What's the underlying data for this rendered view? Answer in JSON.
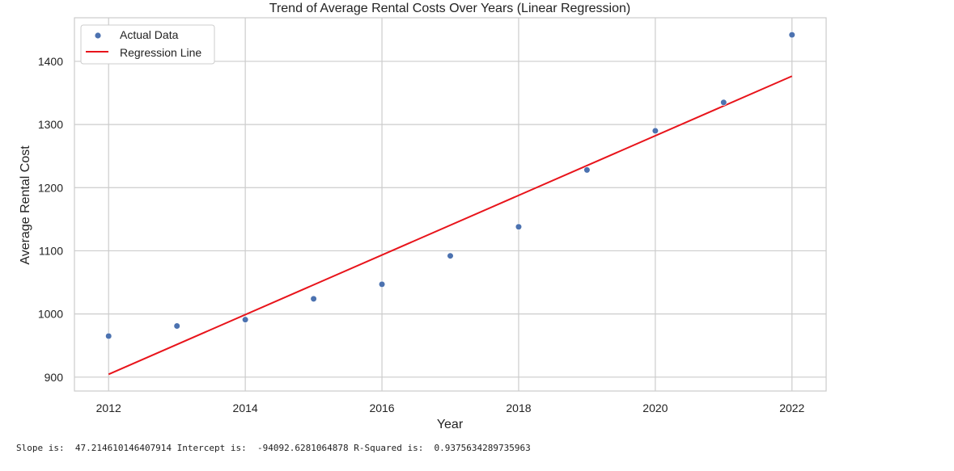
{
  "chart_data": {
    "type": "scatter",
    "title": "Trend of Average Rental Costs Over Years (Linear Regression)",
    "xlabel": "Year",
    "ylabel": "Average Rental Cost",
    "xlim": [
      2011.5,
      2022.5
    ],
    "ylim": [
      878,
      1469
    ],
    "x_ticks": [
      "2012",
      "2014",
      "2016",
      "2018",
      "2020",
      "2022"
    ],
    "y_ticks": [
      "900",
      "1000",
      "1100",
      "1200",
      "1300",
      "1400"
    ],
    "grid": true,
    "legend_position": "top-left",
    "series": [
      {
        "name": "Actual Data",
        "kind": "scatter",
        "color": "#4c72b0",
        "x": [
          2012,
          2013,
          2014,
          2015,
          2016,
          2017,
          2018,
          2019,
          2020,
          2021,
          2022
        ],
        "y": [
          965,
          981,
          991,
          1024,
          1047,
          1092,
          1138,
          1228,
          1290,
          1335,
          1442
        ]
      },
      {
        "name": "Regression Line",
        "kind": "line",
        "color": "#e8141b",
        "x": [
          2012,
          2022
        ],
        "y": [
          904.5,
          1376.6
        ]
      }
    ]
  },
  "stats_text": "Slope is:  47.214610146407914 Intercept is:  -94092.6281064878 R-Squared is:  0.9375634289735963"
}
